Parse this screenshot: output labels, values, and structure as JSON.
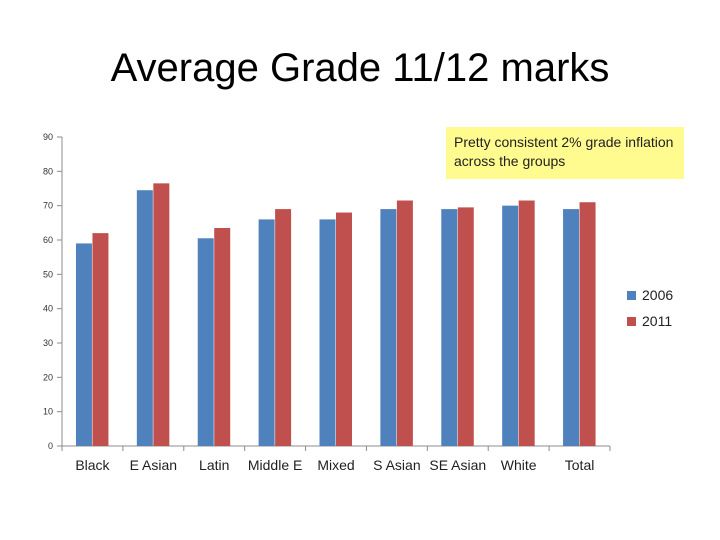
{
  "title": "Average Grade 11/12 marks",
  "callout": "Pretty consistent 2% grade inflation across the groups",
  "colors": {
    "2006": "#4f81bd",
    "2011": "#c0504d"
  },
  "chart_data": {
    "type": "bar",
    "categories": [
      "Black",
      "E Asian",
      "Latin",
      "Middle E",
      "Mixed",
      "S Asian",
      "SE Asian",
      "White",
      "Total"
    ],
    "series": [
      {
        "name": "2006",
        "values": [
          59,
          74.5,
          60.5,
          66,
          66,
          69,
          69,
          70,
          69
        ]
      },
      {
        "name": "2011",
        "values": [
          62,
          76.5,
          63.5,
          69,
          68,
          71.5,
          69.5,
          71.5,
          71
        ]
      }
    ],
    "ylim": [
      0,
      90
    ],
    "yticks": [
      0,
      10,
      20,
      30,
      40,
      50,
      60,
      70,
      80,
      90
    ],
    "legend": "right",
    "grid": false
  }
}
